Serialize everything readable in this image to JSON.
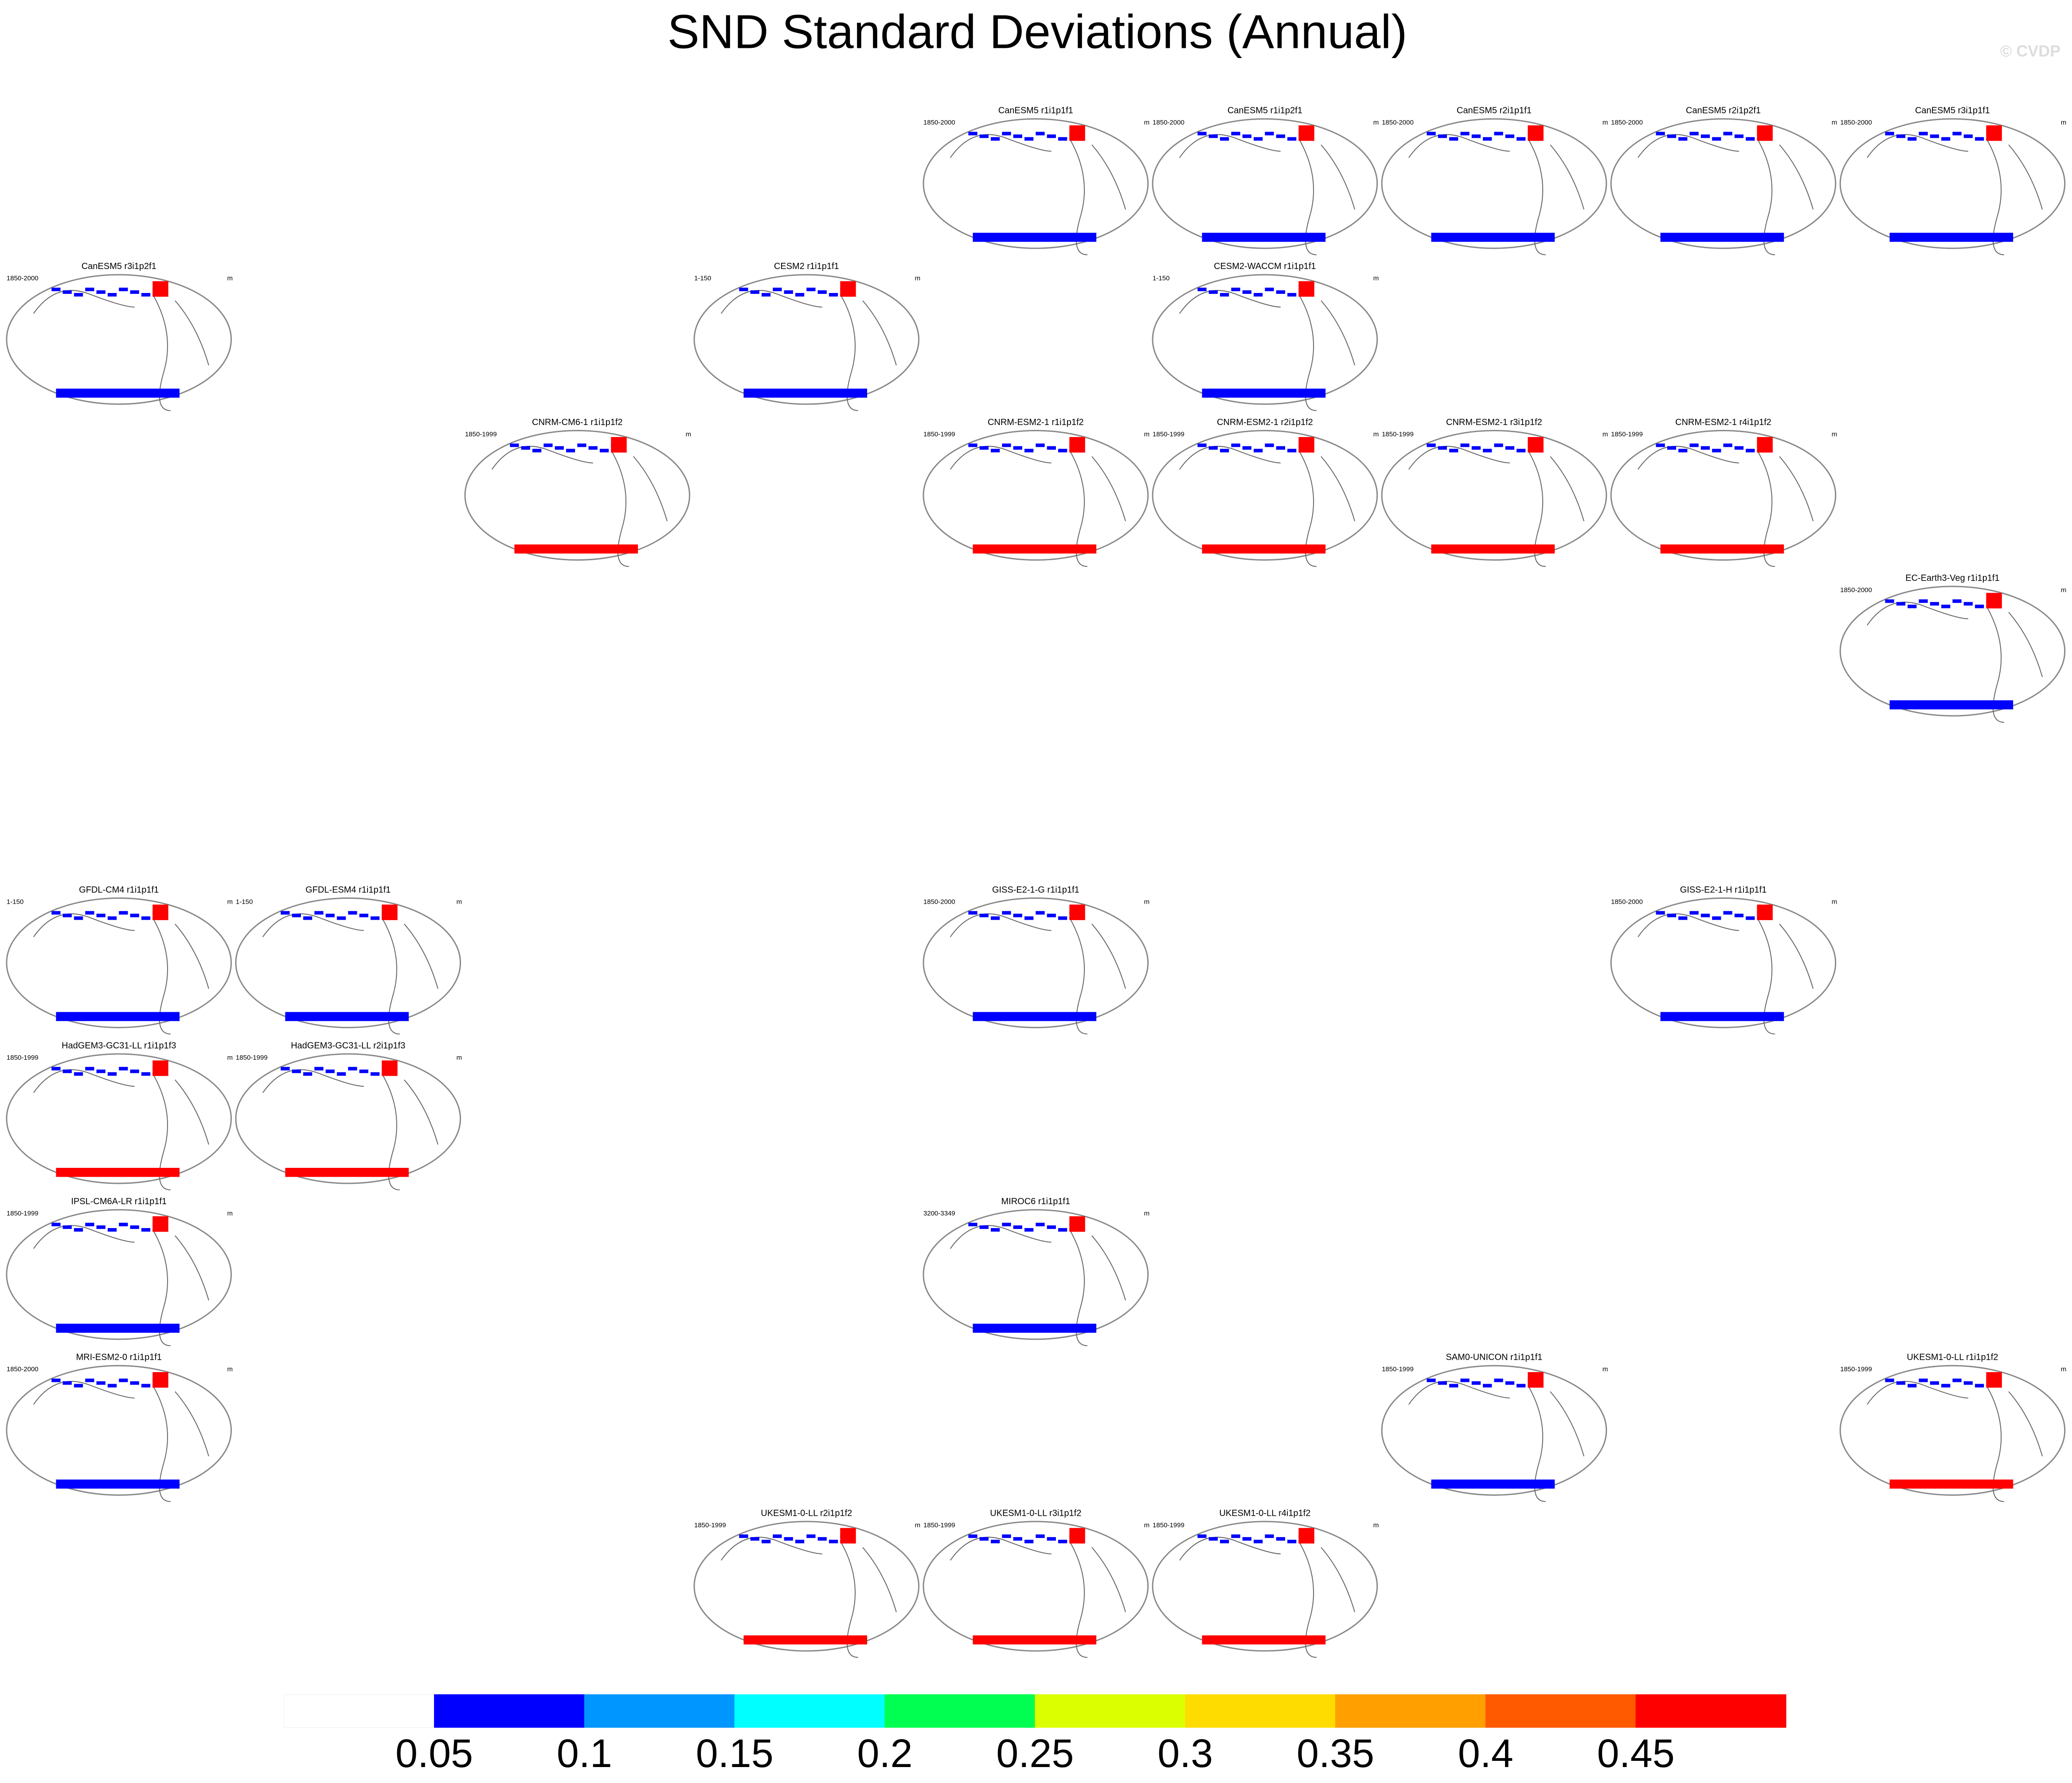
{
  "title": "SND Standard Deviations (Annual)",
  "watermark": "© CVDP",
  "panels": [
    {
      "title": "CanESM5 r1i1p1f1",
      "period": "1850-2000",
      "units": "m"
    },
    {
      "title": "CanESM5 r1i1p2f1",
      "period": "1850-2000",
      "units": "m"
    },
    {
      "title": "CanESM5 r2i1p1f1",
      "period": "1850-2000",
      "units": "m"
    },
    {
      "title": "CanESM5 r2i1p2f1",
      "period": "1850-2000",
      "units": "m"
    },
    {
      "title": "CanESM5 r3i1p1f1",
      "period": "1850-2000",
      "units": "m"
    },
    {
      "title": "CanESM5 r3i1p2f1",
      "period": "1850-2000",
      "units": "m"
    },
    {
      "title": "CESM2 r1i1p1f1",
      "period": "1-150",
      "units": "m"
    },
    {
      "title": "CESM2-WACCM r1i1p1f1",
      "period": "1-150",
      "units": "m"
    },
    {
      "title": "CNRM-CM6-1 r1i1p1f2",
      "period": "1850-1999",
      "units": "m"
    },
    {
      "title": "CNRM-ESM2-1 r1i1p1f2",
      "period": "1850-1999",
      "units": "m"
    },
    {
      "title": "CNRM-ESM2-1 r2i1p1f2",
      "period": "1850-1999",
      "units": "m"
    },
    {
      "title": "CNRM-ESM2-1 r3i1p1f2",
      "period": "1850-1999",
      "units": "m"
    },
    {
      "title": "CNRM-ESM2-1 r4i1p1f2",
      "period": "1850-1999",
      "units": "m"
    },
    {
      "title": "EC-Earth3-Veg r1i1p1f1",
      "period": "1850-2000",
      "units": "m"
    },
    {
      "title": "GFDL-CM4 r1i1p1f1",
      "period": "1-150",
      "units": "m"
    },
    {
      "title": "GFDL-ESM4 r1i1p1f1",
      "period": "1-150",
      "units": "m"
    },
    {
      "title": "GISS-E2-1-G r1i1p1f1",
      "period": "1850-2000",
      "units": "m"
    },
    {
      "title": "GISS-E2-1-H r1i1p1f1",
      "period": "1850-2000",
      "units": "m"
    },
    {
      "title": "HadGEM3-GC31-LL r1i1p1f3",
      "period": "1850-1999",
      "units": "m"
    },
    {
      "title": "HadGEM3-GC31-LL r2i1p1f3",
      "period": "1850-1999",
      "units": "m"
    },
    {
      "title": "IPSL-CM6A-LR r1i1p1f1",
      "period": "1850-1999",
      "units": "m"
    },
    {
      "title": "MIROC6 r1i1p1f1",
      "period": "3200-3349",
      "units": "m"
    },
    {
      "title": "MRI-ESM2-0 r1i1p1f1",
      "period": "1850-2000",
      "units": "m"
    },
    {
      "title": "SAM0-UNICON r1i1p1f1",
      "period": "1850-1999",
      "units": "m"
    },
    {
      "title": "UKESM1-0-LL r1i1p1f2",
      "period": "1850-1999",
      "units": "m"
    },
    {
      "title": "UKESM1-0-LL r2i1p1f2",
      "period": "1850-1999",
      "units": "m"
    },
    {
      "title": "UKESM1-0-LL r3i1p1f2",
      "period": "1850-1999",
      "units": "m"
    },
    {
      "title": "UKESM1-0-LL r4i1p1f2",
      "period": "1850-1999",
      "units": "m"
    }
  ],
  "colorbar": {
    "levels": [
      0.05,
      0.1,
      0.15,
      0.2,
      0.25,
      0.3,
      0.35,
      0.4,
      0.45
    ],
    "colors": [
      "#ffffff",
      "#0000ff",
      "#0096ff",
      "#00ffff",
      "#00ff50",
      "#dcff00",
      "#ffdc00",
      "#ffa000",
      "#ff5a00",
      "#ff0000"
    ]
  }
}
